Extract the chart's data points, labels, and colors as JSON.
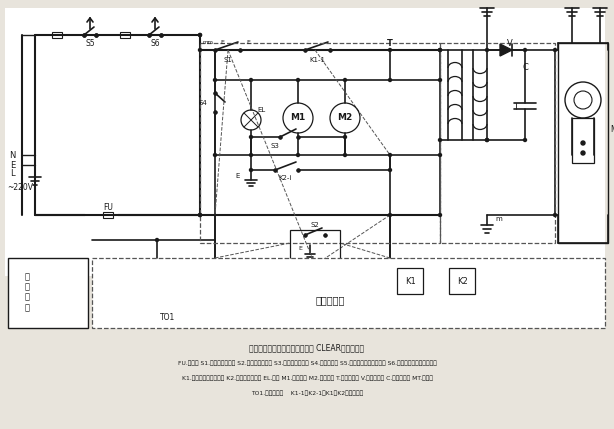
{
  "bg_color": "#e8e4dc",
  "line_color": "#1a1a1a",
  "caption1": "条件：炉门一开；薄膜开关一按 CLEAR（取消键）",
  "caption2": "FU.熔断器 S1.门第一联锁开关 S2.门第二联锁开关 S3.门第三联锁开关 S4.门监控开关 S5.炉腔热继电器保护开关 S6.磁控管热继电器保护开关",
  "caption3a": "K1.微度火力控制继电器 K2.定时控制继电器 EL.炉灯 M1.风扇电机 M2.转盘电机 T.高压变压器 V.高压二极管 ",
  "caption3b": "C.高压电容器",
  "caption3c": " ",
  "caption3d": "MT.磁控管",
  "caption4": "TO1.低压变压器    K1-1、K2-1、K1、K2继电器开关",
  "dashed_color": "#555555",
  "white": "#ffffff"
}
